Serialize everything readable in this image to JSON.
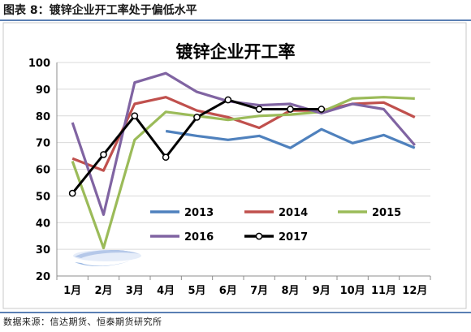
{
  "figure_title": "图表 8：镀锌企业开工率处于偏低水平",
  "source": "数据来源：信达期货、恒泰期货研究所",
  "chart_data": {
    "type": "line",
    "title": "镀锌企业开工率",
    "xlabel": "",
    "ylabel": "",
    "categories": [
      "1月",
      "2月",
      "3月",
      "4月",
      "5月",
      "6月",
      "7月",
      "8月",
      "9月",
      "10月",
      "11月",
      "12月"
    ],
    "ylim": [
      20,
      100
    ],
    "yticks": [
      20,
      30,
      40,
      50,
      60,
      70,
      80,
      90,
      100
    ],
    "grid": true,
    "legend_position": "lower-center-inside",
    "series": [
      {
        "name": "2013",
        "color": "#4f81bd",
        "values": [
          null,
          null,
          null,
          74.3,
          72.5,
          71.0,
          72.5,
          68.0,
          75.0,
          69.8,
          72.8,
          68.0
        ]
      },
      {
        "name": "2014",
        "color": "#c0504d",
        "values": [
          64.0,
          59.5,
          84.5,
          87.0,
          82.0,
          79.5,
          75.5,
          82.0,
          82.0,
          84.5,
          85.0,
          79.5
        ]
      },
      {
        "name": "2015",
        "color": "#9bbb59",
        "values": [
          63.0,
          30.5,
          71.0,
          81.5,
          80.0,
          78.5,
          80.0,
          80.5,
          81.5,
          86.5,
          87.0,
          86.5
        ]
      },
      {
        "name": "2016",
        "color": "#8064a2",
        "values": [
          77.5,
          43.0,
          92.5,
          96.0,
          89.0,
          85.5,
          84.0,
          84.5,
          81.0,
          84.5,
          82.5,
          69.0
        ]
      },
      {
        "name": "2017",
        "color": "#000000",
        "marker": "circle",
        "values": [
          51.0,
          65.5,
          80.0,
          64.5,
          79.5,
          86.0,
          82.5,
          82.5,
          82.5,
          null,
          null,
          null
        ]
      }
    ]
  }
}
